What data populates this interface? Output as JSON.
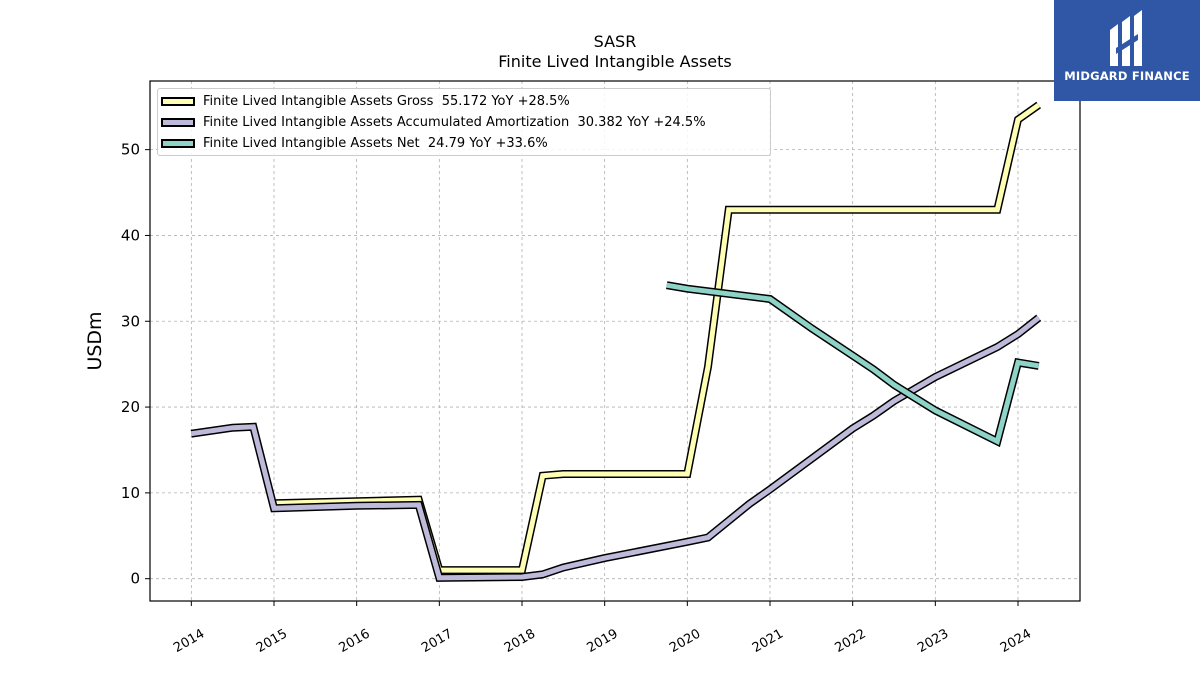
{
  "logo": {
    "text": "MIDGARD FINANCE"
  },
  "chart_data": {
    "type": "line",
    "title": "SASR",
    "subtitle": "Finite Lived Intangible Assets",
    "xlabel": "",
    "ylabel": "USDm",
    "xlim": [
      2013.5,
      2024.75
    ],
    "ylim": [
      -2.6,
      58.0
    ],
    "x_ticks": [
      2014,
      2015,
      2016,
      2017,
      2018,
      2019,
      2020,
      2021,
      2022,
      2023,
      2024
    ],
    "y_ticks": [
      0,
      10,
      20,
      30,
      40,
      50
    ],
    "grid": true,
    "legend_position": "top-left",
    "series": [
      {
        "name": "Finite Lived Intangible Assets Gross  55.172 YoY +28.5%",
        "color": "#ffffb3",
        "points": [
          [
            2015.0,
            8.8
          ],
          [
            2016.75,
            9.2
          ],
          [
            2017.0,
            1.0
          ],
          [
            2018.0,
            1.0
          ],
          [
            2018.25,
            12.0
          ],
          [
            2018.5,
            12.2
          ],
          [
            2019.0,
            12.2
          ],
          [
            2020.0,
            12.2
          ],
          [
            2020.25,
            24.7
          ],
          [
            2020.5,
            43.0
          ],
          [
            2021.0,
            43.0
          ],
          [
            2022.0,
            43.0
          ],
          [
            2023.0,
            43.0
          ],
          [
            2023.75,
            43.0
          ],
          [
            2024.0,
            53.5
          ],
          [
            2024.25,
            55.2
          ]
        ]
      },
      {
        "name": "Finite Lived Intangible Assets Accumulated Amortization  30.382 YoY +24.5%",
        "color": "#bebada",
        "points": [
          [
            2014.0,
            16.9
          ],
          [
            2014.5,
            17.6
          ],
          [
            2014.75,
            17.7
          ],
          [
            2015.0,
            8.2
          ],
          [
            2016.0,
            8.5
          ],
          [
            2016.75,
            8.6
          ],
          [
            2017.0,
            0.1
          ],
          [
            2018.0,
            0.2
          ],
          [
            2018.25,
            0.5
          ],
          [
            2018.5,
            1.3
          ],
          [
            2019.0,
            2.4
          ],
          [
            2020.0,
            4.3
          ],
          [
            2020.25,
            4.8
          ],
          [
            2020.75,
            8.7
          ],
          [
            2021.0,
            10.4
          ],
          [
            2022.0,
            17.5
          ],
          [
            2022.25,
            19.0
          ],
          [
            2022.5,
            20.7
          ],
          [
            2023.0,
            23.5
          ],
          [
            2023.75,
            27.0
          ],
          [
            2024.0,
            28.5
          ],
          [
            2024.25,
            30.4
          ]
        ]
      },
      {
        "name": "Finite Lived Intangible Assets Net  24.79 YoY +33.6%",
        "color": "#8dd3c7",
        "points": [
          [
            2019.75,
            34.2
          ],
          [
            2020.0,
            33.8
          ],
          [
            2021.0,
            32.6
          ],
          [
            2021.5,
            29.2
          ],
          [
            2022.0,
            26.0
          ],
          [
            2022.25,
            24.4
          ],
          [
            2022.5,
            22.6
          ],
          [
            2023.0,
            19.6
          ],
          [
            2023.75,
            16.0
          ],
          [
            2024.0,
            25.2
          ],
          [
            2024.25,
            24.8
          ]
        ]
      }
    ]
  }
}
